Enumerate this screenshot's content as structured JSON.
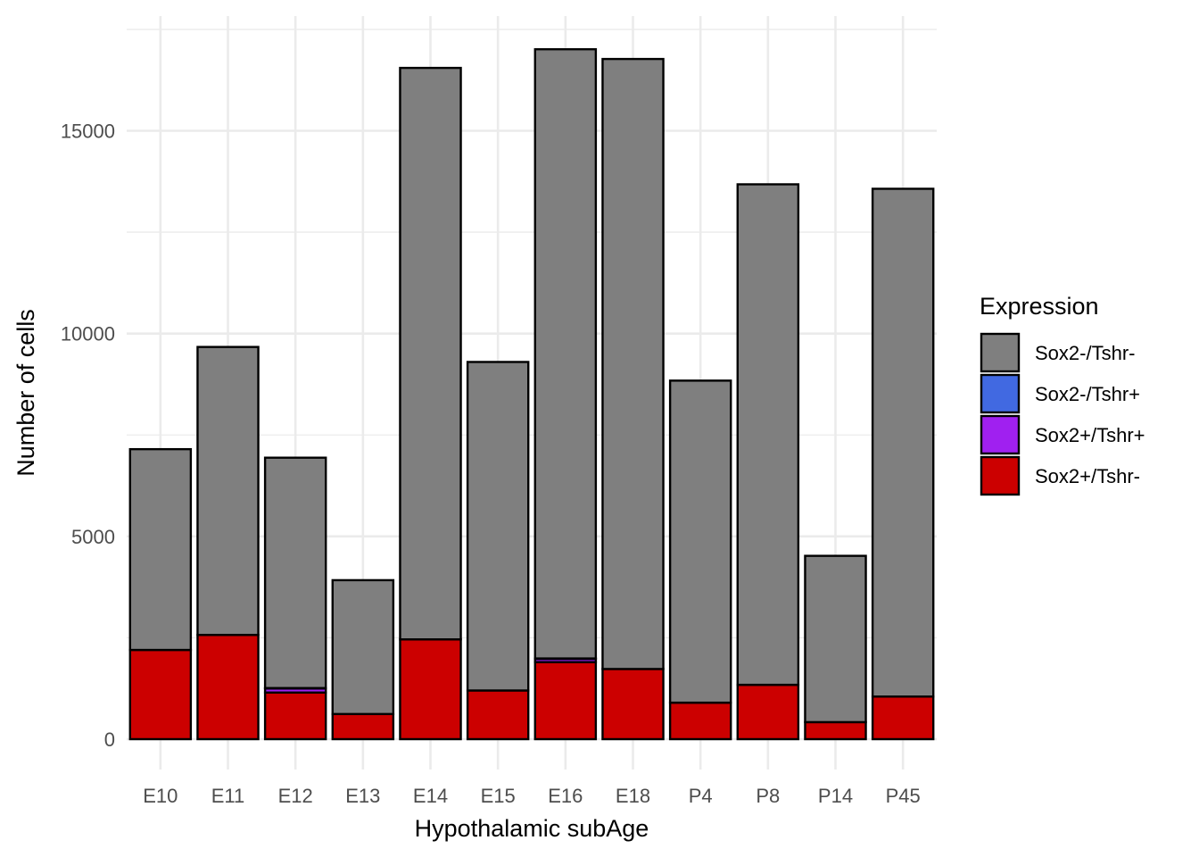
{
  "chart_data": {
    "type": "bar",
    "stacked": true,
    "xlabel": "Hypothalamic subAge",
    "ylabel": "Number of cells",
    "ylim": [
      0,
      17500
    ],
    "y_ticks": [
      0,
      5000,
      10000,
      15000
    ],
    "grid": true,
    "legend_position": "right",
    "legend_title": "Expression",
    "categories": [
      "E10",
      "E11",
      "E12",
      "E13",
      "E14",
      "E15",
      "E16",
      "E18",
      "P4",
      "P8",
      "P14",
      "P45"
    ],
    "series": [
      {
        "name": "Sox2+/Tshr-",
        "color": "#cc0000",
        "values": [
          2200,
          2570,
          1150,
          620,
          2460,
          1200,
          1900,
          1730,
          900,
          1340,
          420,
          1050
        ]
      },
      {
        "name": "Sox2+/Tshr+",
        "color": "#a020f0",
        "values": [
          0,
          0,
          100,
          0,
          0,
          0,
          80,
          0,
          0,
          0,
          0,
          0
        ]
      },
      {
        "name": "Sox2-/Tshr+",
        "color": "#4169e1",
        "values": [
          0,
          0,
          10,
          0,
          0,
          0,
          10,
          0,
          0,
          0,
          0,
          0
        ]
      },
      {
        "name": "Sox2-/Tshr-",
        "color": "#7f7f7f",
        "values": [
          4950,
          7100,
          5680,
          3300,
          14090,
          8100,
          15020,
          15040,
          7940,
          12340,
          4100,
          12520
        ]
      }
    ],
    "legend_order": [
      "Sox2-/Tshr-",
      "Sox2-/Tshr+",
      "Sox2+/Tshr+",
      "Sox2+/Tshr-"
    ]
  }
}
